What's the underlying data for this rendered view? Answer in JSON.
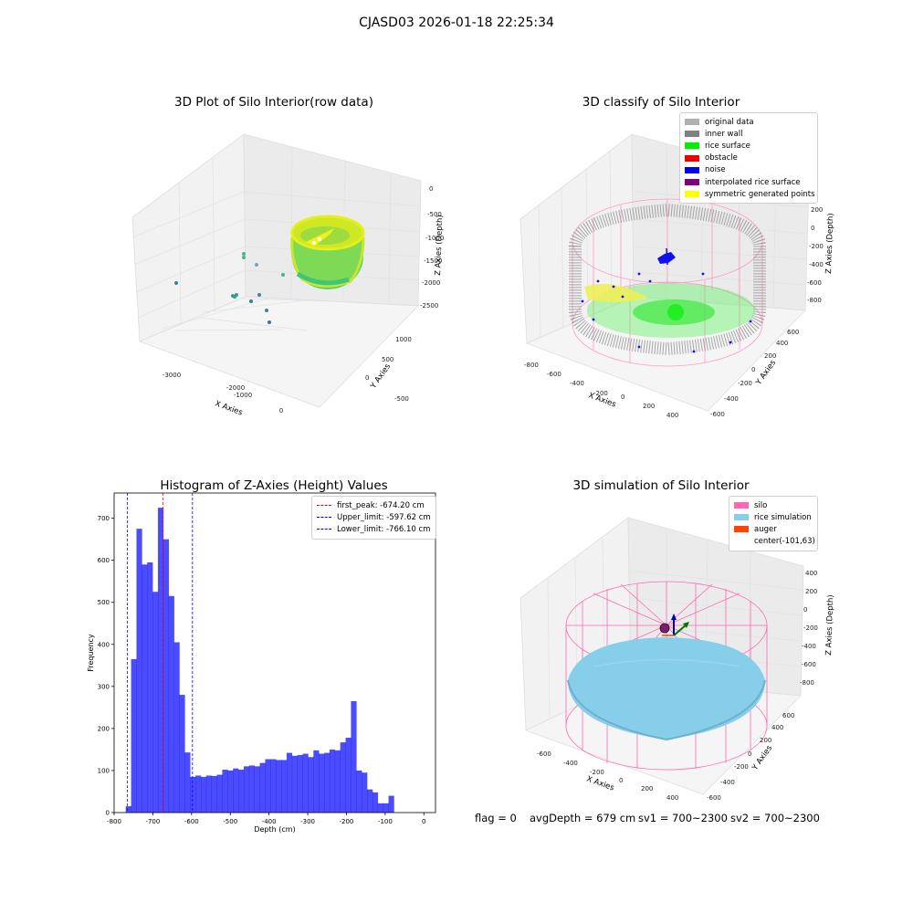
{
  "suptitle": "CJASD03 2026-01-18 22:25:34",
  "footer": {
    "flag": "flag = 0",
    "avg": "avgDepth = 679 cm",
    "sv1": "sv1 = 700~2300",
    "sv2": "sv2 = 700~2300"
  },
  "plot1": {
    "title": "3D Plot of Silo Interior(row data)",
    "xlabel": "X Axies",
    "ylabel": "Y Axies",
    "zlabel": "Z Axies (Depth)",
    "xticks": [
      "-3000",
      "-2000",
      "-1000",
      "0"
    ],
    "yticks": [
      "-500",
      "0",
      "500",
      "1000"
    ],
    "zticks": [
      "0",
      "-500",
      "-1000",
      "-1500",
      "-2000",
      "-2500"
    ]
  },
  "plot2": {
    "title": "3D classify of Silo Interior",
    "xlabel": "X Axies",
    "ylabel": "Y Axies",
    "zlabel": "Z Axies (Depth)",
    "xticks": [
      "-800",
      "-600",
      "-400",
      "-200",
      "0",
      "200",
      "400"
    ],
    "yticks": [
      "-600",
      "-400",
      "-200",
      "0",
      "200",
      "400",
      "600"
    ],
    "zticks": [
      "200",
      "0",
      "-200",
      "-400",
      "-600",
      "-800"
    ],
    "legend": [
      {
        "label": "original data",
        "color": "#b0b0b0"
      },
      {
        "label": "inner wall",
        "color": "#808080"
      },
      {
        "label": "rice surface",
        "color": "#00ee00"
      },
      {
        "label": "obstacle",
        "color": "#ee0000"
      },
      {
        "label": "noise",
        "color": "#0000ee"
      },
      {
        "label": "interpolated rice surface",
        "color": "#800080"
      },
      {
        "label": "symmetric generated points",
        "color": "#ffff00"
      }
    ]
  },
  "plot4": {
    "title": "3D simulation of Silo Interior",
    "xlabel": "X Axies",
    "ylabel": "Y Axies",
    "zlabel": "Z Axies (Depth)",
    "xticks": [
      "-600",
      "-400",
      "-200",
      "0",
      "200",
      "400"
    ],
    "yticks": [
      "-600",
      "-400",
      "-200",
      "0",
      "200",
      "400",
      "600"
    ],
    "zticks": [
      "400",
      "200",
      "0",
      "-200",
      "-400",
      "-600",
      "-800"
    ],
    "legend": [
      {
        "label": "silo",
        "color": "#ff69b4"
      },
      {
        "label": "rice simulation",
        "color": "#87ceeb"
      },
      {
        "label": "auger",
        "color": "#ff4500"
      },
      {
        "label": "center(-101,63)",
        "color": ""
      }
    ]
  },
  "chart_data": {
    "type": "bar",
    "title": "Histogram of Z-Axies (Height) Values",
    "xlabel": "Depth (cm)",
    "ylabel": "Frequency",
    "xlim": [
      -800,
      30
    ],
    "ylim": [
      0,
      760
    ],
    "xticks": [
      -800,
      -700,
      -600,
      -500,
      -400,
      -300,
      -200,
      -100,
      0
    ],
    "yticks": [
      0,
      100,
      200,
      300,
      400,
      500,
      600,
      700
    ],
    "bar_color": "#0000ff",
    "bin_start": -770,
    "bin_width": 13.85,
    "values": [
      15,
      365,
      675,
      590,
      595,
      525,
      725,
      650,
      515,
      405,
      280,
      143,
      85,
      88,
      85,
      88,
      87,
      90,
      102,
      100,
      105,
      102,
      110,
      112,
      110,
      118,
      127,
      127,
      125,
      125,
      142,
      135,
      137,
      140,
      132,
      148,
      140,
      142,
      150,
      148,
      167,
      178,
      265,
      100,
      95,
      55,
      48,
      22,
      22,
      40
    ],
    "vlines": [
      {
        "label": "first_peak: -674.20 cm",
        "x": -674.2,
        "color": "#ff0000"
      },
      {
        "label": "Upper_limit: -597.62 cm",
        "x": -597.62,
        "color": "#0000ff"
      },
      {
        "label": "Lower_limit: -766.10 cm",
        "x": -766.1,
        "color": "#0000ff"
      }
    ]
  }
}
